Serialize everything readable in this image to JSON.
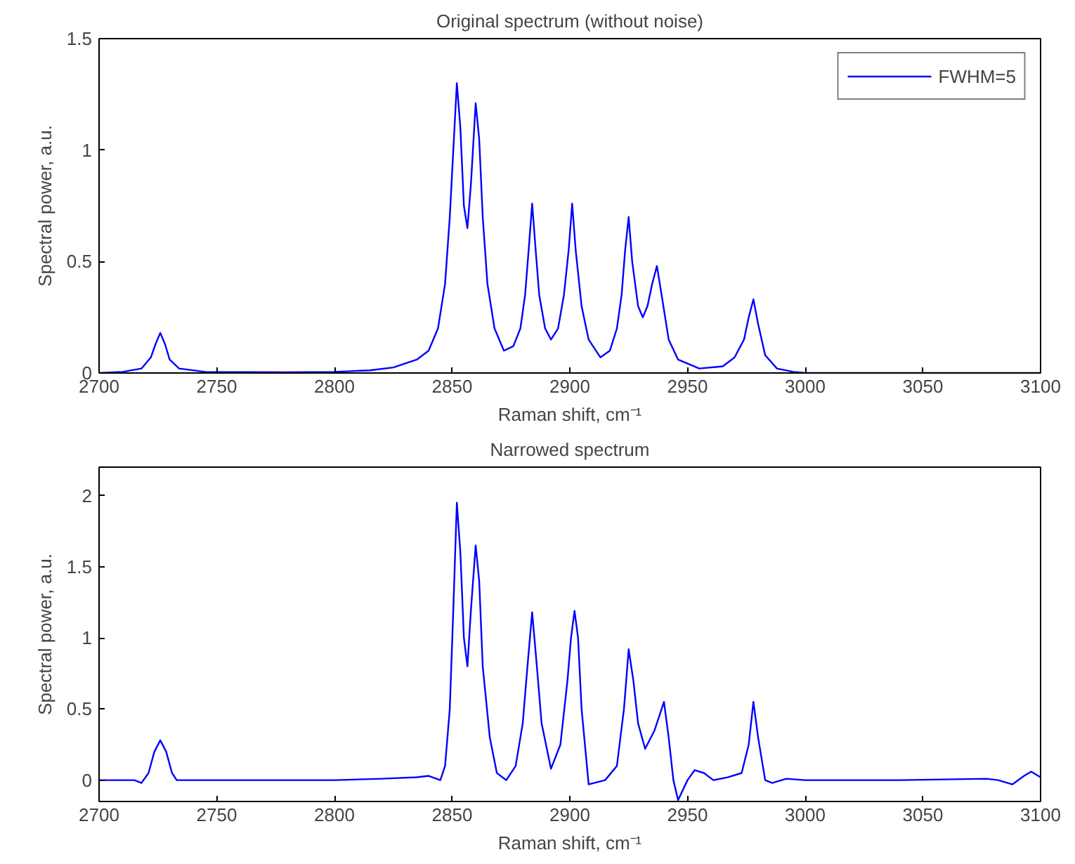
{
  "chart_data": [
    {
      "type": "line",
      "title": "Original spectrum (without noise)",
      "xlabel": "Raman shift, cm⁻¹",
      "ylabel": "Spectral power, a.u.",
      "xlim": [
        2700,
        3100
      ],
      "xticks": [
        2700,
        2750,
        2800,
        2850,
        2900,
        2950,
        3000,
        3050,
        3100
      ],
      "ylim": [
        0,
        1.5
      ],
      "yticks": [
        0,
        0.5,
        1,
        1.5
      ],
      "grid": false,
      "legend": "top right",
      "line_style": "solid",
      "marker": "none",
      "series": [
        {
          "name": "FWHM=5",
          "color": "#0000ff",
          "x": [
            2700,
            2710,
            2718,
            2722,
            2724,
            2726,
            2728,
            2730,
            2734,
            2745,
            2780,
            2800,
            2815,
            2825,
            2835,
            2840,
            2844,
            2847,
            2849,
            2850.5,
            2852,
            2853.5,
            2855,
            2856.5,
            2858,
            2860,
            2861.5,
            2863,
            2865,
            2868,
            2872,
            2876,
            2879,
            2881,
            2882.5,
            2884,
            2885.5,
            2887,
            2889.5,
            2892,
            2895,
            2897.5,
            2899.5,
            2901,
            2902.5,
            2905,
            2908,
            2913,
            2917,
            2920,
            2922,
            2923.5,
            2925,
            2926.5,
            2929,
            2931,
            2933,
            2935,
            2937,
            2939,
            2942,
            2946,
            2955,
            2965,
            2970,
            2974,
            2976,
            2978,
            2980,
            2983,
            2988,
            2995,
            3000,
            3100
          ],
          "values": [
            0,
            0.005,
            0.02,
            0.07,
            0.13,
            0.18,
            0.13,
            0.06,
            0.02,
            0.005,
            0.003,
            0.005,
            0.012,
            0.025,
            0.06,
            0.1,
            0.2,
            0.4,
            0.7,
            1.0,
            1.3,
            1.1,
            0.75,
            0.65,
            0.85,
            1.21,
            1.05,
            0.7,
            0.4,
            0.2,
            0.1,
            0.12,
            0.2,
            0.35,
            0.55,
            0.76,
            0.55,
            0.35,
            0.2,
            0.15,
            0.2,
            0.35,
            0.55,
            0.76,
            0.55,
            0.3,
            0.15,
            0.07,
            0.1,
            0.2,
            0.35,
            0.55,
            0.7,
            0.5,
            0.3,
            0.25,
            0.3,
            0.4,
            0.48,
            0.35,
            0.15,
            0.06,
            0.02,
            0.03,
            0.07,
            0.15,
            0.25,
            0.33,
            0.22,
            0.08,
            0.02,
            0.005,
            0,
            0
          ]
        }
      ]
    },
    {
      "type": "line",
      "title": "Narrowed spectrum",
      "xlabel": "Raman shift, cm⁻¹",
      "ylabel": "Spectral power, a.u.",
      "xlim": [
        2700,
        3100
      ],
      "xticks": [
        2700,
        2750,
        2800,
        2850,
        2900,
        2950,
        3000,
        3050,
        3100
      ],
      "ylim": [
        -0.15,
        2.2
      ],
      "yticks": [
        0,
        0.5,
        1,
        1.5,
        2
      ],
      "grid": false,
      "legend": false,
      "line_style": "solid",
      "marker": "none",
      "series": [
        {
          "color": "#0000ff",
          "x": [
            2700,
            2715,
            2718,
            2721,
            2723.5,
            2726,
            2728.5,
            2731,
            2733,
            2760,
            2800,
            2820,
            2835,
            2840,
            2845,
            2847,
            2849,
            2850.5,
            2852,
            2853.5,
            2855,
            2856.5,
            2858,
            2860,
            2861.5,
            2863,
            2866,
            2869,
            2873,
            2877,
            2880,
            2882,
            2884,
            2886,
            2888,
            2892,
            2896,
            2899,
            2900.5,
            2902,
            2903.5,
            2905,
            2908,
            2915,
            2920,
            2923,
            2925,
            2927,
            2929,
            2932,
            2936,
            2940,
            2942,
            2944,
            2946,
            2950,
            2953,
            2957,
            2961,
            2967,
            2973,
            2976,
            2978,
            2980,
            2983,
            2986,
            2992,
            3000,
            3040,
            3077,
            3082,
            3088,
            3093,
            3096,
            3100
          ],
          "values": [
            0,
            0,
            -0.02,
            0.05,
            0.2,
            0.28,
            0.2,
            0.05,
            0,
            0,
            0,
            0.01,
            0.02,
            0.03,
            0,
            0.1,
            0.5,
            1.2,
            1.95,
            1.6,
            1.0,
            0.8,
            1.2,
            1.65,
            1.4,
            0.8,
            0.3,
            0.05,
            0,
            0.1,
            0.4,
            0.8,
            1.18,
            0.8,
            0.4,
            0.08,
            0.25,
            0.7,
            1.0,
            1.19,
            1.0,
            0.5,
            -0.03,
            0,
            0.1,
            0.5,
            0.92,
            0.7,
            0.4,
            0.22,
            0.35,
            0.55,
            0.3,
            0.0,
            -0.14,
            0,
            0.07,
            0.05,
            0,
            0.02,
            0.05,
            0.25,
            0.55,
            0.3,
            0,
            -0.02,
            0.01,
            0,
            0,
            0.01,
            0,
            -0.03,
            0.03,
            0.06,
            0.02
          ]
        }
      ]
    }
  ]
}
